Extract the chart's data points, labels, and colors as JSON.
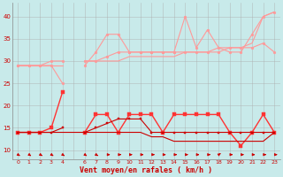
{
  "background_color": "#c8eaea",
  "grid_color": "#aaaaaa",
  "xlabel": "Vent moyen/en rafales ( km/h )",
  "ylim": [
    8,
    43
  ],
  "xlim": [
    -0.5,
    23.5
  ],
  "yticks": [
    10,
    15,
    20,
    25,
    30,
    35,
    40
  ],
  "series": [
    {
      "name": "rafales_light1",
      "color": "#ff9999",
      "linewidth": 0.8,
      "marker": "o",
      "markersize": 2.0,
      "y": [
        29,
        29,
        29,
        29,
        25,
        null,
        29,
        32,
        36,
        36,
        32,
        32,
        32,
        32,
        32,
        40,
        33,
        37,
        33,
        32,
        32,
        36,
        40,
        41
      ]
    },
    {
      "name": "vent_trend_light",
      "color": "#ff9999",
      "linewidth": 0.8,
      "marker": "o",
      "markersize": 2.0,
      "y": [
        29,
        29,
        29,
        30,
        30,
        null,
        30,
        30,
        31,
        32,
        32,
        32,
        32,
        32,
        32,
        32,
        32,
        32,
        32,
        33,
        33,
        33,
        34,
        32
      ]
    },
    {
      "name": "linear_trend",
      "color": "#ff9999",
      "linewidth": 0.8,
      "marker": null,
      "markersize": 0,
      "y": [
        29,
        29,
        29,
        29,
        29,
        null,
        30,
        30,
        30,
        30,
        31,
        31,
        31,
        31,
        31,
        32,
        32,
        32,
        33,
        33,
        33,
        34,
        40,
        41
      ]
    },
    {
      "name": "rafales_dark",
      "color": "#ff3333",
      "linewidth": 1.0,
      "marker": "s",
      "markersize": 2.5,
      "y": [
        14,
        14,
        14,
        15,
        23,
        null,
        14,
        18,
        18,
        14,
        18,
        18,
        18,
        14,
        18,
        18,
        18,
        18,
        18,
        14,
        11,
        14,
        18,
        14
      ]
    },
    {
      "name": "vent_moy_dark",
      "color": "#cc0000",
      "linewidth": 0.8,
      "marker": "s",
      "markersize": 2.0,
      "y": [
        14,
        14,
        14,
        14,
        15,
        null,
        14,
        15,
        16,
        17,
        17,
        17,
        14,
        14,
        14,
        14,
        14,
        14,
        14,
        14,
        14,
        14,
        14,
        14
      ]
    },
    {
      "name": "vent_min_flat",
      "color": "#cc0000",
      "linewidth": 0.8,
      "marker": null,
      "markersize": 0,
      "y": [
        14,
        14,
        14,
        14,
        14,
        14,
        14,
        14,
        14,
        14,
        14,
        14,
        13,
        13,
        12,
        12,
        12,
        12,
        12,
        12,
        12,
        12,
        12,
        14
      ]
    }
  ],
  "arrows": {
    "x": [
      0,
      1,
      2,
      3,
      4,
      6,
      7,
      8,
      9,
      10,
      11,
      12,
      13,
      14,
      15,
      16,
      17,
      18,
      19,
      20,
      21,
      22,
      23
    ],
    "angles": [
      45,
      45,
      45,
      45,
      45,
      45,
      45,
      90,
      90,
      90,
      90,
      90,
      90,
      90,
      90,
      90,
      90,
      135,
      90,
      90,
      90,
      90,
      90
    ]
  }
}
